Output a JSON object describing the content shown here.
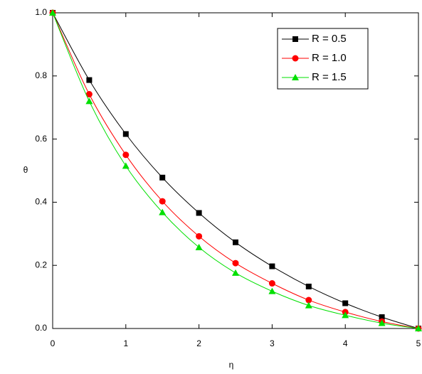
{
  "chart_data": {
    "type": "line",
    "x_label": "η",
    "y_label": "θ",
    "x": [
      0,
      0.5,
      1,
      1.5,
      2,
      2.5,
      3,
      3.5,
      4,
      4.5,
      5
    ],
    "series": [
      {
        "name": "R = 0.5",
        "color": "#000000",
        "marker": "square",
        "values": [
          1.0,
          0.787,
          0.616,
          0.478,
          0.366,
          0.273,
          0.197,
          0.133,
          0.08,
          0.036,
          0.0
        ]
      },
      {
        "name": "R = 1.0",
        "color": "#ff0000",
        "marker": "circle",
        "values": [
          1.0,
          0.742,
          0.55,
          0.403,
          0.292,
          0.207,
          0.143,
          0.09,
          0.052,
          0.022,
          0.0
        ]
      },
      {
        "name": "R = 1.5",
        "color": "#00e000",
        "marker": "triangle",
        "values": [
          1.0,
          0.72,
          0.515,
          0.368,
          0.257,
          0.176,
          0.118,
          0.073,
          0.042,
          0.017,
          0.0
        ]
      }
    ],
    "xlim": [
      0,
      5
    ],
    "ylim": [
      0,
      1
    ],
    "xticks": [
      0,
      1,
      2,
      3,
      4,
      5
    ],
    "yticks": [
      {
        "value": 0,
        "label": "0.0"
      },
      0.2,
      0.4,
      0.6,
      0.8,
      {
        "value": 1,
        "label": "1.0"
      }
    ],
    "legend": "top-right"
  }
}
